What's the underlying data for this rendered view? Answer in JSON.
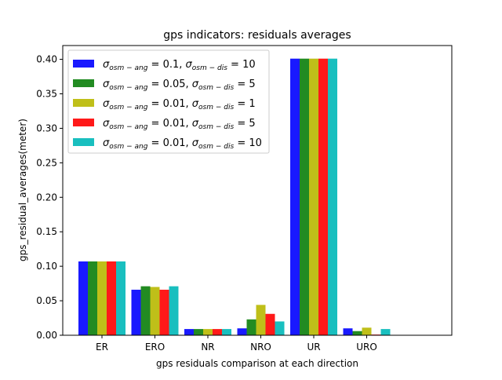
{
  "chart_data": {
    "type": "bar",
    "title": "gps indicators: residuals averages",
    "xlabel": "gps residuals comparison at each direction",
    "ylabel": "gps_residual_averages(meter)",
    "categories": [
      "ER",
      "ERO",
      "NR",
      "NRO",
      "UR",
      "URO"
    ],
    "ylim": [
      0,
      0.42
    ],
    "yticks": [
      0.0,
      0.05,
      0.1,
      0.15,
      0.2,
      0.25,
      0.3,
      0.35,
      0.4
    ],
    "ytick_labels": [
      "0.00",
      "0.05",
      "0.10",
      "0.15",
      "0.20",
      "0.25",
      "0.30",
      "0.35",
      "0.40"
    ],
    "legend_position": "top-left",
    "grid": false,
    "series": [
      {
        "label": {
          "ang": "0.1",
          "dis": "10"
        },
        "color": "#1919ff",
        "values": [
          0.107,
          0.066,
          0.009,
          0.01,
          0.401,
          0.01
        ]
      },
      {
        "label": {
          "ang": "0.05",
          "dis": "5"
        },
        "color": "#228b22",
        "values": [
          0.107,
          0.071,
          0.009,
          0.023,
          0.401,
          0.006
        ]
      },
      {
        "label": {
          "ang": "0.01",
          "dis": "1"
        },
        "color": "#bfbf19",
        "values": [
          0.107,
          0.07,
          0.009,
          0.044,
          0.401,
          0.011
        ]
      },
      {
        "label": {
          "ang": "0.01",
          "dis": "5"
        },
        "color": "#ff1919",
        "values": [
          0.107,
          0.066,
          0.009,
          0.031,
          0.401,
          0.001
        ]
      },
      {
        "label": {
          "ang": "0.01",
          "dis": "10"
        },
        "color": "#19bfbf",
        "values": [
          0.107,
          0.071,
          0.009,
          0.02,
          0.401,
          0.009
        ]
      }
    ],
    "legend_label_parts": {
      "sigma": "σ",
      "sub_ang": "osm − ang",
      "sub_dis": "osm − dis",
      "equals": " = ",
      "comma": ", "
    }
  }
}
